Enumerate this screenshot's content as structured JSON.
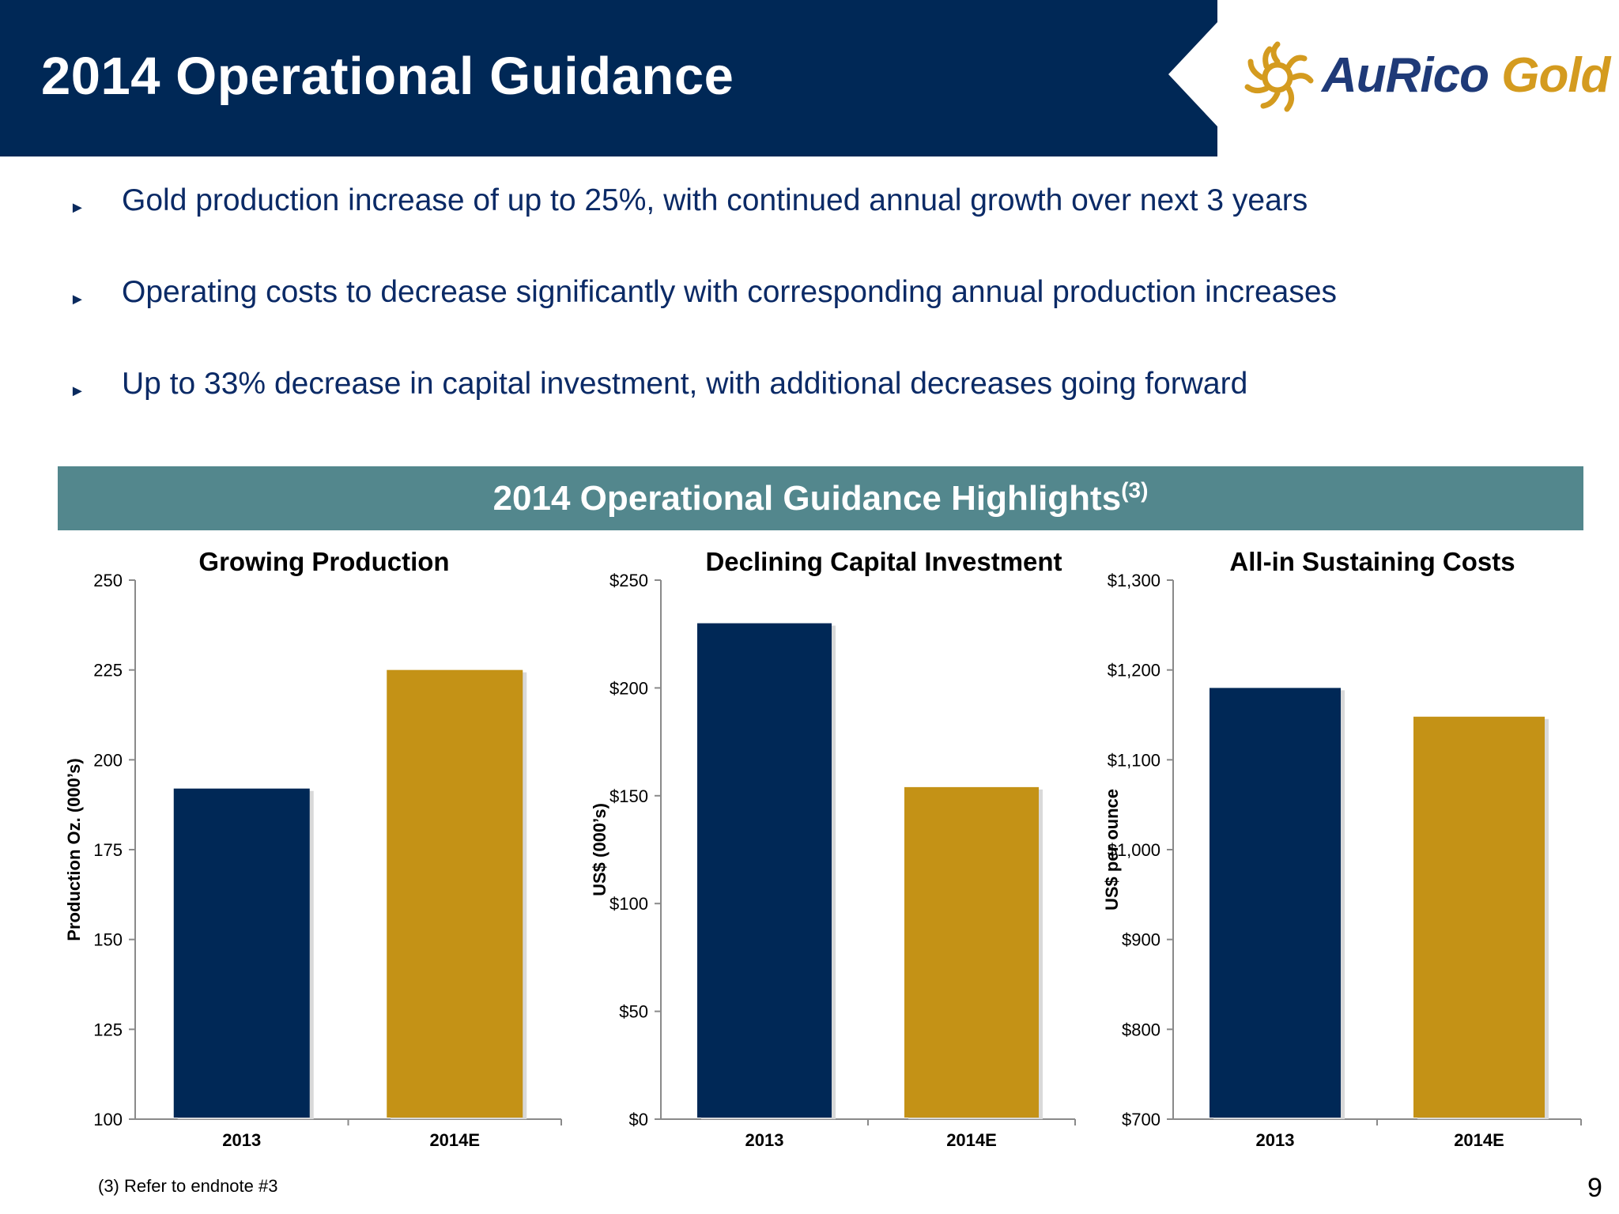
{
  "header": {
    "title": "2014 Operational Guidance",
    "bg_color": "#002856"
  },
  "logo": {
    "name": "sun-logo-icon",
    "text_part1": "AuRico",
    "text_part2": "Gold",
    "color_primary": "#1f3a78",
    "color_accent": "#d49b1f"
  },
  "bullets": [
    {
      "marker": "►",
      "text": "Gold production increase of up to 25%, with continued annual growth over next 3 years"
    },
    {
      "marker": "►",
      "text": "Operating costs to decrease significantly with corresponding annual production increases"
    },
    {
      "marker": "►",
      "text": "Up to 33% decrease in capital investment, with additional decreases going forward"
    }
  ],
  "highlights": {
    "title": "2014 Operational Guidance Highlights",
    "superscript": "(3)",
    "bg_color": "#53878d"
  },
  "footnote": "(3) Refer to endnote #3",
  "page_number": "9",
  "colors": {
    "navy": "#002856",
    "gold": "#c49216"
  },
  "chart_data": [
    {
      "type": "bar",
      "title": "Growing Production",
      "ylabel": "Production Oz. (000’s)",
      "xlabel": "",
      "categories": [
        "2013",
        "2014E"
      ],
      "values": [
        192,
        225
      ],
      "ylim": [
        100,
        250
      ],
      "yticks": [
        "100",
        "125",
        "150",
        "175",
        "200",
        "225",
        "250"
      ],
      "ytick_values": [
        100,
        125,
        150,
        175,
        200,
        225,
        250
      ],
      "bar_colors": [
        "#002856",
        "#c49216"
      ],
      "grid": false,
      "legend": "none"
    },
    {
      "type": "bar",
      "title": "Declining Capital Investment",
      "ylabel": "US$ (000’s)",
      "xlabel": "",
      "categories": [
        "2013",
        "2014E"
      ],
      "values": [
        230,
        154
      ],
      "ylim": [
        0,
        250
      ],
      "yticks": [
        "$0",
        "$50",
        "$100",
        "$150",
        "$200",
        "$250"
      ],
      "ytick_values": [
        0,
        50,
        100,
        150,
        200,
        250
      ],
      "bar_colors": [
        "#002856",
        "#c49216"
      ],
      "grid": false,
      "legend": "none"
    },
    {
      "type": "bar",
      "title": "All-in Sustaining Costs",
      "ylabel": "US$ per ounce",
      "xlabel": "",
      "categories": [
        "2013",
        "2014E"
      ],
      "values": [
        1180,
        1148
      ],
      "ylim": [
        700,
        1300
      ],
      "yticks": [
        "$700",
        "$800",
        "$900",
        "$1,000",
        "$1,100",
        "$1,200",
        "$1,300"
      ],
      "ytick_values": [
        700,
        800,
        900,
        1000,
        1100,
        1200,
        1300
      ],
      "bar_colors": [
        "#002856",
        "#c49216"
      ],
      "grid": false,
      "legend": "none"
    }
  ]
}
